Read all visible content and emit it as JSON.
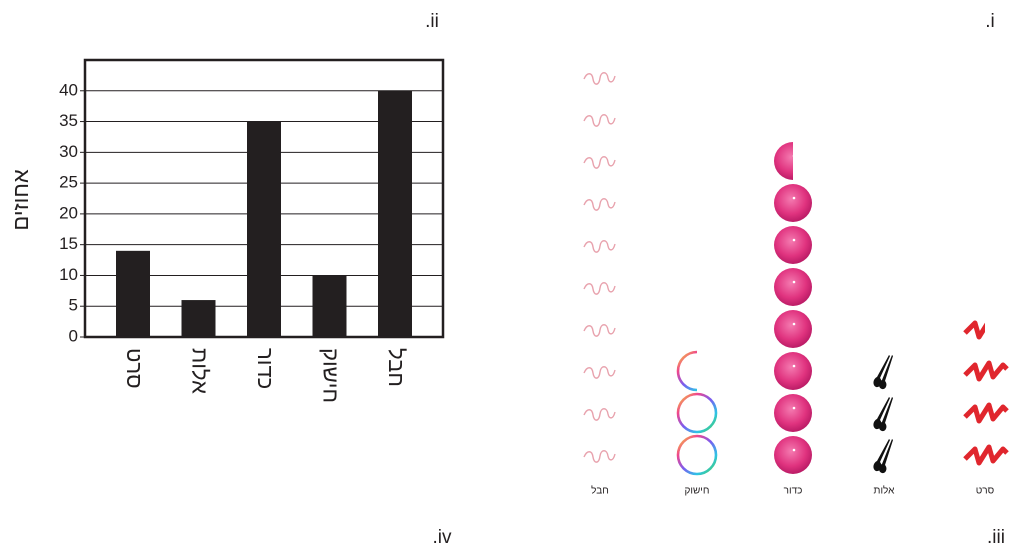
{
  "panel_labels": [
    ".i",
    ".ii",
    ".iii",
    ".iv"
  ],
  "chart_data": [
    {
      "type": "pictograph",
      "categories": [
        "חבל",
        "חישוק",
        "כדור",
        "אלות",
        "סרט"
      ],
      "values": [
        10,
        2.5,
        7.5,
        3,
        3.5
      ]
    },
    {
      "type": "bar",
      "ylabel": "אחוזים",
      "categories": [
        "סרט",
        "אלות",
        "כדור",
        "חישוק",
        "חבל"
      ],
      "values": [
        14,
        6,
        35,
        10,
        40
      ],
      "color": "#231f20",
      "ylim": [
        0,
        45
      ],
      "yticks": [
        0,
        5,
        10,
        15,
        20,
        25,
        30,
        35,
        40
      ],
      "grid": true
    }
  ]
}
